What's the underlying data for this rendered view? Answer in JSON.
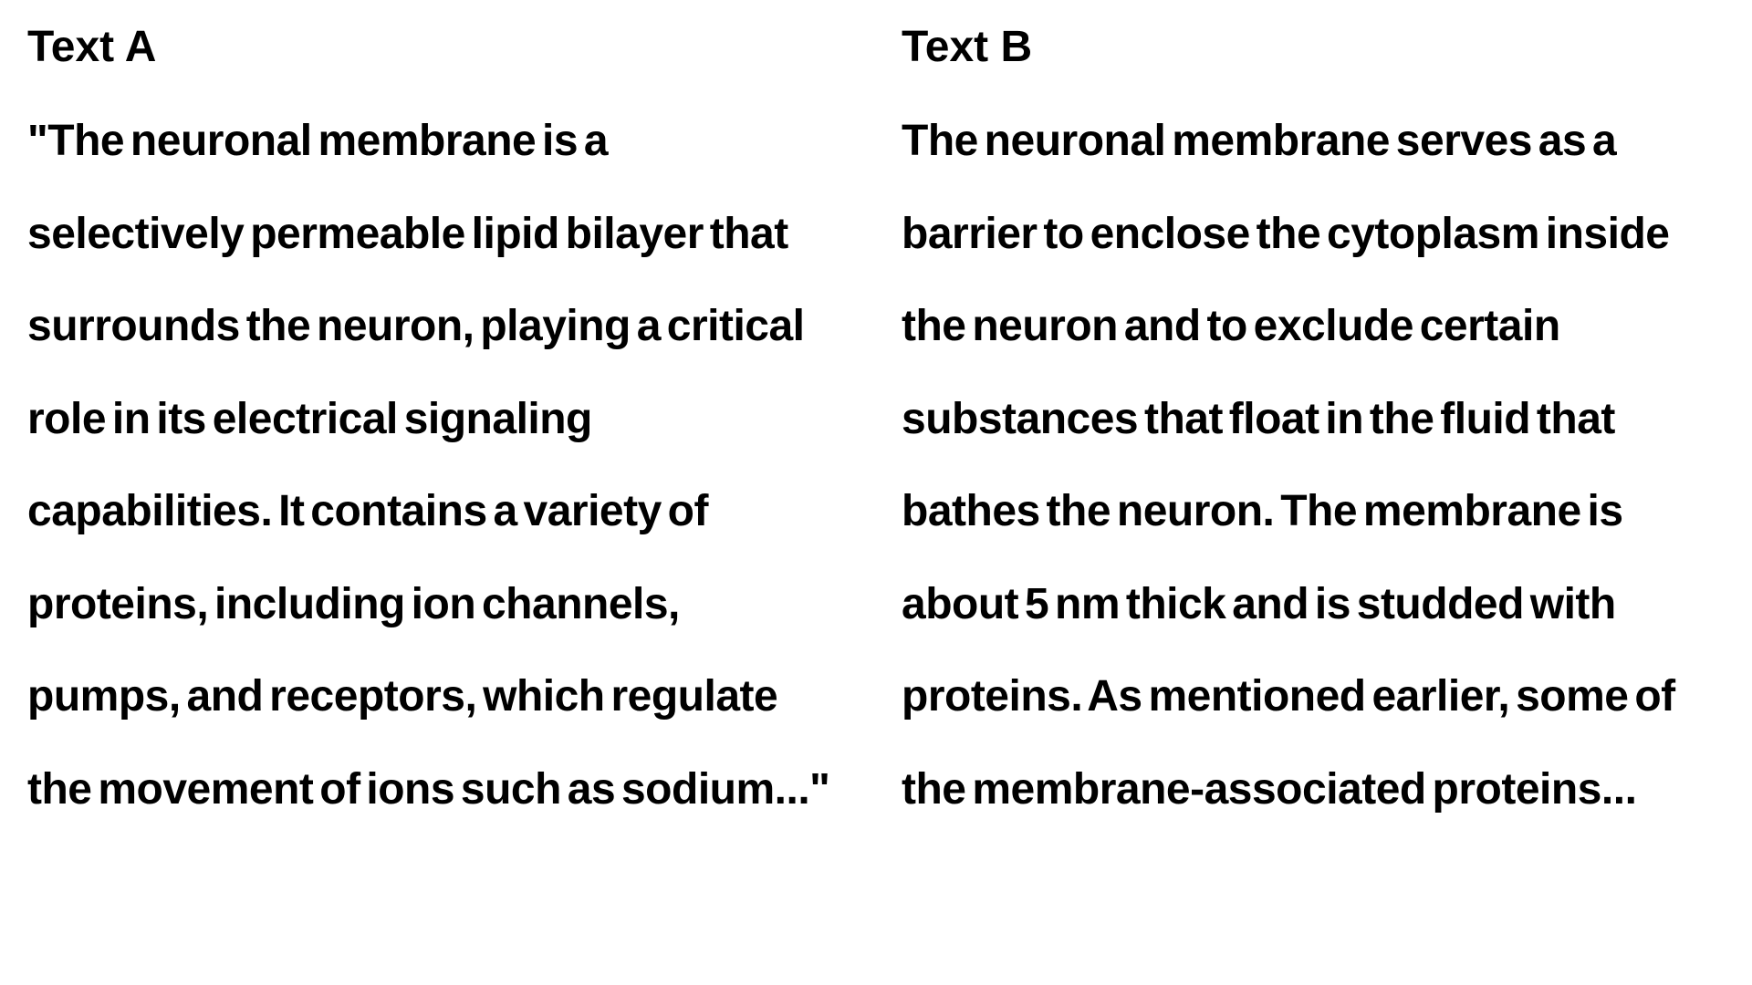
{
  "text_a": {
    "heading": "Text A",
    "lines": [
      "\"The neuronal membrane is a",
      "selectively permeable lipid bilayer that",
      "surrounds the neuron, playing a critical",
      "role in its electrical signaling",
      "capabilities. It contains a variety of",
      "proteins, including ion channels,",
      "pumps, and receptors, which regulate",
      "the movement of ions such as sodium...\""
    ]
  },
  "text_b": {
    "heading": "Text B",
    "lines": [
      "The neuronal membrane serves as a",
      "barrier to enclose the cytoplasm inside",
      "the neuron and to exclude certain",
      "substances that float in the fluid that",
      "bathes the neuron. The membrane is",
      "about 5 nm thick and is studded with",
      "proteins. As mentioned earlier, some of",
      "the membrane-associated proteins..."
    ]
  }
}
